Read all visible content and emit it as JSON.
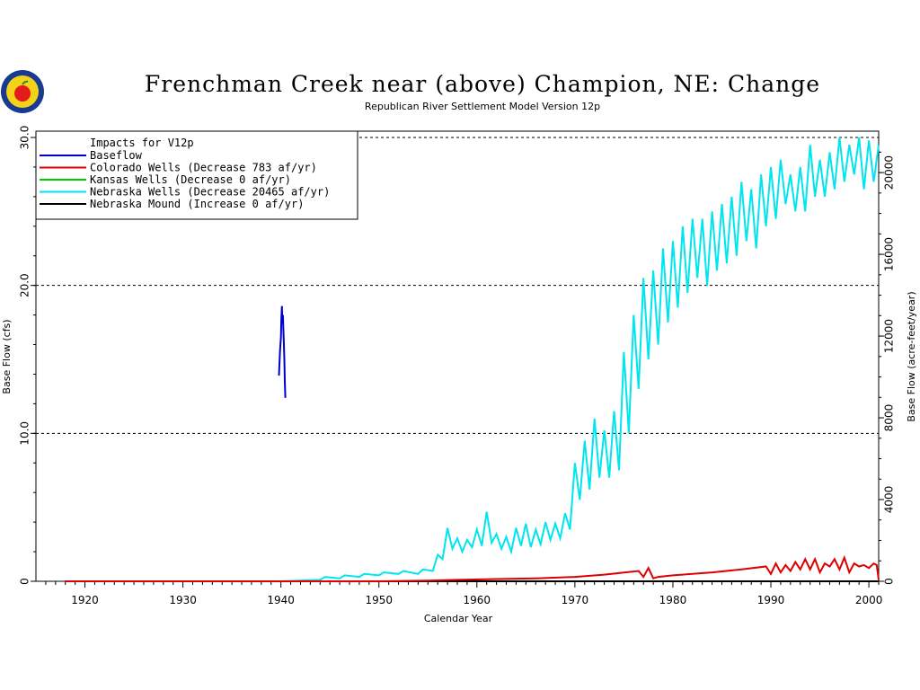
{
  "chart_data": {
    "type": "line",
    "title": "Frenchman Creek near (above) Champion, NE: Change",
    "subtitle": "Republican River Settlement Model Version 12p",
    "xlabel": "Calendar Year",
    "ylabel": "Base Flow (cfs)",
    "ylabel_right": "Base Flow (acre-feet/year)",
    "xlim": [
      1915,
      2001
    ],
    "ylim": [
      0,
      30
    ],
    "ylim_right": [
      0,
      21719
    ],
    "x_ticks": [
      1920,
      1930,
      1940,
      1950,
      1960,
      1970,
      1980,
      1990,
      2000
    ],
    "y_ticks": [
      0,
      10,
      20,
      30
    ],
    "y_tick_labels": [
      "0",
      "10.0",
      "20.0",
      "30.0"
    ],
    "y_ticks_right": [
      0,
      4000,
      8000,
      12000,
      16000,
      20000
    ],
    "gridlines_y": [
      10,
      20,
      30
    ],
    "legend_position": "top-left",
    "legend_title": "Impacts for V12p",
    "series": [
      {
        "name": "Baseflow",
        "legend_text": "Baseflow",
        "color": "#0000cc",
        "x": [
          1939.8,
          1939.9,
          1940.0,
          1940.05,
          1940.1,
          1940.15,
          1940.2,
          1940.25,
          1940.3,
          1940.35,
          1940.4,
          1940.45
        ],
        "y": [
          13.9,
          15.5,
          16.5,
          17.8,
          18.6,
          17.4,
          18.0,
          17.0,
          16.2,
          15.0,
          13.5,
          12.4
        ]
      },
      {
        "name": "Colorado Wells",
        "legend_text": "Colorado Wells   (Decrease   783  af/yr)",
        "color": "#dd0000",
        "x": [
          1918,
          1950,
          1955,
          1958,
          1962,
          1966,
          1970,
          1973,
          1976.5,
          1977,
          1977.5,
          1978,
          1978.5,
          1980,
          1984,
          1987,
          1989.5,
          1990,
          1990.5,
          1991,
          1991.5,
          1992,
          1992.5,
          1993,
          1993.5,
          1994,
          1994.5,
          1995,
          1995.5,
          1996,
          1996.5,
          1997,
          1997.5,
          1998,
          1998.5,
          1999,
          1999.5,
          2000,
          2000.5,
          2000.8,
          2001
        ],
        "y": [
          0,
          0,
          0.05,
          0.1,
          0.15,
          0.2,
          0.3,
          0.45,
          0.7,
          0.3,
          0.9,
          0.2,
          0.3,
          0.4,
          0.6,
          0.8,
          1.0,
          0.5,
          1.2,
          0.6,
          1.1,
          0.7,
          1.3,
          0.8,
          1.5,
          0.8,
          1.5,
          0.6,
          1.2,
          1.0,
          1.5,
          0.8,
          1.6,
          0.6,
          1.2,
          1.0,
          1.1,
          0.9,
          1.2,
          1.1,
          0.1
        ]
      },
      {
        "name": "Kansas Wells",
        "legend_text": "Kansas Wells     (Decrease     0  af/yr)",
        "color": "#00cc00",
        "x": [
          1918,
          2001
        ],
        "y": [
          0,
          0
        ]
      },
      {
        "name": "Nebraska Wells",
        "legend_text": "Nebraska Wells   (Decrease 20465  af/yr)",
        "color": "#00e5ee",
        "x": [
          1940,
          1944,
          1944.5,
          1946,
          1946.5,
          1948,
          1948.5,
          1950,
          1950.5,
          1952,
          1952.5,
          1954,
          1954.5,
          1955.5,
          1956,
          1956.5,
          1957,
          1957.5,
          1958,
          1958.5,
          1959,
          1959.5,
          1960,
          1960.5,
          1961,
          1961.5,
          1962,
          1962.5,
          1963,
          1963.5,
          1964,
          1964.5,
          1965,
          1965.5,
          1966,
          1966.5,
          1967,
          1967.5,
          1968,
          1968.5,
          1969,
          1969.5,
          1970,
          1970.5,
          1971,
          1971.5,
          1972,
          1972.5,
          1973,
          1973.5,
          1974,
          1974.5,
          1975,
          1975.5,
          1976,
          1976.5,
          1977,
          1977.5,
          1978,
          1978.5,
          1979,
          1979.5,
          1980,
          1980.5,
          1981,
          1981.5,
          1982,
          1982.5,
          1983,
          1983.5,
          1984,
          1984.5,
          1985,
          1985.5,
          1986,
          1986.5,
          1987,
          1987.5,
          1988,
          1988.5,
          1989,
          1989.5,
          1990,
          1990.5,
          1991,
          1991.5,
          1992,
          1992.5,
          1993,
          1993.5,
          1994,
          1994.5,
          1995,
          1995.5,
          1996,
          1996.5,
          1997,
          1997.5,
          1998,
          1998.5,
          1999,
          1999.5,
          2000,
          2000.5,
          2001
        ],
        "y": [
          0,
          0.1,
          0.3,
          0.2,
          0.4,
          0.3,
          0.5,
          0.4,
          0.6,
          0.5,
          0.7,
          0.5,
          0.8,
          0.7,
          1.8,
          1.5,
          3.6,
          2.2,
          2.9,
          2.0,
          2.8,
          2.3,
          3.5,
          2.4,
          4.7,
          2.6,
          3.2,
          2.2,
          3.0,
          2.0,
          3.6,
          2.4,
          3.9,
          2.3,
          3.5,
          2.5,
          4.0,
          2.8,
          3.9,
          2.9,
          4.6,
          3.5,
          8.0,
          5.5,
          9.5,
          6.2,
          11.0,
          7.0,
          10.2,
          7.0,
          11.5,
          7.5,
          15.5,
          10.0,
          18.0,
          13.0,
          20.5,
          15.0,
          21.0,
          16.0,
          22.5,
          17.5,
          23.0,
          18.5,
          24.0,
          19.5,
          24.5,
          20.5,
          24.5,
          20.0,
          25.0,
          21.0,
          25.5,
          21.5,
          26.0,
          22.0,
          27.0,
          23.0,
          26.5,
          22.5,
          27.5,
          24.0,
          28.0,
          24.5,
          28.5,
          25.5,
          27.5,
          25.0,
          28.0,
          25.0,
          29.5,
          26.0,
          28.5,
          26.0,
          29.0,
          26.5,
          30.0,
          27.0,
          29.5,
          27.5,
          30.0,
          26.5,
          29.8,
          27.0,
          29.5
        ]
      },
      {
        "name": "Nebraska Mound",
        "legend_text": "Nebraska Mound  (Increase      0  af/yr)",
        "color": "#000000",
        "x": [
          1918,
          2001
        ],
        "y": [
          0,
          0
        ]
      }
    ]
  }
}
